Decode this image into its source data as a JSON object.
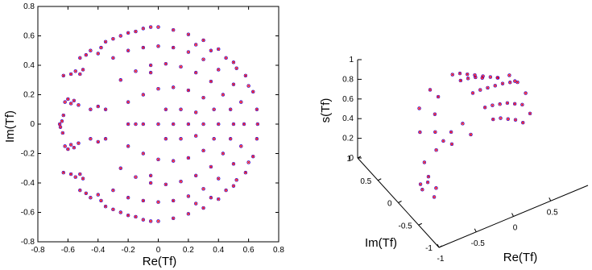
{
  "chart_data": [
    {
      "type": "scatter",
      "title": "",
      "xlabel": "Re(Tf)",
      "ylabel": "Im(Tf)",
      "xlim": [
        -0.8,
        0.8
      ],
      "ylim": [
        -0.8,
        0.8
      ],
      "xticks": [
        "-0.8",
        "-0.6",
        "-0.4",
        "-0.2",
        "0",
        "0.2",
        "0.4",
        "0.6",
        "0.8"
      ],
      "yticks": [
        "-0.8",
        "-0.6",
        "-0.4",
        "-0.2",
        "0",
        "0.2",
        "0.4",
        "0.6",
        "0.8"
      ],
      "grid": false,
      "marker_colors": [
        "#0000ff",
        "#ff0000"
      ],
      "series": [
        {
          "values": [
            [
              -0.655,
              0.0
            ],
            [
              -0.64,
              0.02
            ],
            [
              -0.63,
              0.06
            ],
            [
              -0.65,
              -0.02
            ],
            [
              -0.635,
              -0.06
            ],
            [
              -0.62,
              0.15
            ],
            [
              -0.6,
              0.17
            ],
            [
              -0.58,
              0.14
            ],
            [
              -0.56,
              0.16
            ],
            [
              -0.53,
              0.13
            ],
            [
              -0.62,
              -0.15
            ],
            [
              -0.6,
              -0.17
            ],
            [
              -0.58,
              -0.14
            ],
            [
              -0.56,
              -0.16
            ],
            [
              -0.53,
              -0.13
            ],
            [
              -0.63,
              0.33
            ],
            [
              -0.58,
              0.34
            ],
            [
              -0.55,
              0.36
            ],
            [
              -0.52,
              0.34
            ],
            [
              -0.5,
              0.37
            ],
            [
              -0.63,
              -0.33
            ],
            [
              -0.58,
              -0.34
            ],
            [
              -0.55,
              -0.36
            ],
            [
              -0.52,
              -0.34
            ],
            [
              -0.5,
              -0.37
            ],
            [
              -0.52,
              0.45
            ],
            [
              -0.48,
              0.47
            ],
            [
              -0.45,
              0.5
            ],
            [
              -0.4,
              0.48
            ],
            [
              -0.38,
              0.52
            ],
            [
              -0.52,
              -0.45
            ],
            [
              -0.48,
              -0.47
            ],
            [
              -0.45,
              -0.5
            ],
            [
              -0.4,
              -0.48
            ],
            [
              -0.38,
              -0.52
            ],
            [
              -0.35,
              0.56
            ],
            [
              -0.3,
              0.58
            ],
            [
              -0.25,
              0.6
            ],
            [
              -0.2,
              0.62
            ],
            [
              -0.15,
              0.63
            ],
            [
              -0.1,
              0.65
            ],
            [
              -0.05,
              0.66
            ],
            [
              0.0,
              0.66
            ],
            [
              -0.35,
              -0.56
            ],
            [
              -0.3,
              -0.58
            ],
            [
              -0.25,
              -0.6
            ],
            [
              -0.2,
              -0.62
            ],
            [
              -0.15,
              -0.63
            ],
            [
              -0.1,
              -0.65
            ],
            [
              -0.05,
              -0.66
            ],
            [
              0.0,
              -0.66
            ],
            [
              0.1,
              0.64
            ],
            [
              0.2,
              0.61
            ],
            [
              0.3,
              0.57
            ],
            [
              0.4,
              0.51
            ],
            [
              0.5,
              0.42
            ],
            [
              0.58,
              0.33
            ],
            [
              0.63,
              0.22
            ],
            [
              0.655,
              0.1
            ],
            [
              0.66,
              0.0
            ],
            [
              0.1,
              -0.64
            ],
            [
              0.2,
              -0.61
            ],
            [
              0.3,
              -0.57
            ],
            [
              0.4,
              -0.51
            ],
            [
              0.5,
              -0.42
            ],
            [
              0.58,
              -0.33
            ],
            [
              0.63,
              -0.22
            ],
            [
              0.655,
              -0.1
            ],
            [
              -0.3,
              0.45
            ],
            [
              -0.2,
              0.5
            ],
            [
              -0.1,
              0.52
            ],
            [
              0.0,
              0.53
            ],
            [
              0.1,
              0.52
            ],
            [
              0.2,
              0.49
            ],
            [
              0.3,
              0.44
            ],
            [
              0.4,
              0.37
            ],
            [
              0.5,
              0.27
            ],
            [
              0.55,
              0.15
            ],
            [
              0.57,
              0.0
            ],
            [
              -0.3,
              -0.45
            ],
            [
              -0.2,
              -0.5
            ],
            [
              -0.1,
              -0.52
            ],
            [
              0.0,
              -0.53
            ],
            [
              0.1,
              -0.52
            ],
            [
              0.2,
              -0.49
            ],
            [
              0.3,
              -0.44
            ],
            [
              0.4,
              -0.37
            ],
            [
              0.5,
              -0.27
            ],
            [
              0.55,
              -0.15
            ],
            [
              -0.25,
              0.3
            ],
            [
              -0.15,
              0.36
            ],
            [
              -0.05,
              0.4
            ],
            [
              0.05,
              0.41
            ],
            [
              0.15,
              0.39
            ],
            [
              0.25,
              0.35
            ],
            [
              0.35,
              0.29
            ],
            [
              0.43,
              0.2
            ],
            [
              0.48,
              0.1
            ],
            [
              0.5,
              0.0
            ],
            [
              -0.25,
              -0.3
            ],
            [
              -0.15,
              -0.36
            ],
            [
              -0.05,
              -0.4
            ],
            [
              0.05,
              -0.41
            ],
            [
              0.15,
              -0.39
            ],
            [
              0.25,
              -0.35
            ],
            [
              0.35,
              -0.29
            ],
            [
              0.43,
              -0.2
            ],
            [
              0.48,
              -0.1
            ],
            [
              -0.45,
              0.1
            ],
            [
              -0.4,
              0.12
            ],
            [
              -0.35,
              0.1
            ],
            [
              -0.45,
              -0.1
            ],
            [
              -0.4,
              -0.12
            ],
            [
              -0.35,
              -0.1
            ],
            [
              -0.2,
              0.15
            ],
            [
              -0.1,
              0.2
            ],
            [
              0.0,
              0.24
            ],
            [
              0.1,
              0.25
            ],
            [
              0.2,
              0.23
            ],
            [
              0.3,
              0.18
            ],
            [
              0.37,
              0.1
            ],
            [
              0.4,
              0.0
            ],
            [
              -0.2,
              -0.15
            ],
            [
              -0.1,
              -0.2
            ],
            [
              0.0,
              -0.24
            ],
            [
              0.1,
              -0.25
            ],
            [
              0.2,
              -0.23
            ],
            [
              0.3,
              -0.18
            ],
            [
              0.37,
              -0.1
            ],
            [
              -0.2,
              0.0
            ],
            [
              -0.15,
              0.0
            ],
            [
              -0.1,
              0.0
            ],
            [
              0.0,
              0.0
            ],
            [
              0.1,
              0.0
            ],
            [
              0.2,
              0.0
            ],
            [
              0.3,
              0.0
            ],
            [
              0.05,
              0.1
            ],
            [
              0.15,
              0.1
            ],
            [
              0.25,
              0.08
            ],
            [
              0.05,
              -0.1
            ],
            [
              0.15,
              -0.1
            ],
            [
              0.25,
              -0.08
            ],
            [
              -0.05,
              0.35
            ],
            [
              0.25,
              0.54
            ],
            [
              0.35,
              0.5
            ],
            [
              0.45,
              0.45
            ],
            [
              0.52,
              0.38
            ],
            [
              0.6,
              0.26
            ],
            [
              -0.05,
              -0.35
            ],
            [
              0.25,
              -0.54
            ],
            [
              0.35,
              -0.5
            ],
            [
              0.45,
              -0.45
            ],
            [
              0.52,
              -0.38
            ],
            [
              0.6,
              -0.26
            ]
          ]
        }
      ]
    },
    {
      "type": "scatter",
      "title": "",
      "xlabel": "Re(Tf)",
      "ylabel": "Im(Tf)",
      "zlabel": "s(Tf)",
      "xticks": [
        "-1",
        "-0.5",
        "0",
        "0.5"
      ],
      "yticks": [
        "-1",
        "-0.5",
        "0",
        "0.5",
        "1"
      ],
      "zticks": [
        "0",
        "0.2",
        "0.4",
        "0.6",
        "0.8",
        "1"
      ],
      "grid": false,
      "marker_colors": [
        "#0000ff",
        "#ff0000"
      ],
      "series": [
        {
          "values": [
            [
              0.0,
              0.0,
              0.8
            ],
            [
              0.1,
              0.0,
              0.8
            ],
            [
              0.2,
              0.0,
              0.79
            ],
            [
              0.3,
              0.0,
              0.78
            ],
            [
              0.4,
              0.0,
              0.77
            ],
            [
              0.5,
              0.0,
              0.75
            ],
            [
              0.6,
              0.0,
              0.72
            ],
            [
              0.0,
              0.3,
              0.79
            ],
            [
              0.1,
              0.3,
              0.78
            ],
            [
              0.2,
              0.3,
              0.76
            ],
            [
              0.3,
              0.3,
              0.74
            ],
            [
              0.4,
              0.3,
              0.7
            ],
            [
              0.5,
              0.3,
              0.66
            ],
            [
              0.0,
              0.5,
              0.76
            ],
            [
              0.1,
              0.5,
              0.74
            ],
            [
              0.2,
              0.5,
              0.7
            ],
            [
              0.3,
              0.5,
              0.66
            ],
            [
              0.4,
              0.5,
              0.6
            ],
            [
              0.0,
              -0.3,
              0.79
            ],
            [
              0.1,
              -0.3,
              0.78
            ],
            [
              0.2,
              -0.3,
              0.76
            ],
            [
              0.3,
              -0.3,
              0.74
            ],
            [
              0.4,
              -0.3,
              0.7
            ],
            [
              0.5,
              -0.3,
              0.66
            ],
            [
              0.0,
              -0.5,
              0.76
            ],
            [
              0.1,
              -0.5,
              0.74
            ],
            [
              0.2,
              -0.5,
              0.7
            ],
            [
              0.3,
              -0.5,
              0.66
            ],
            [
              0.4,
              -0.5,
              0.6
            ],
            [
              -0.3,
              0.5,
              0.7
            ],
            [
              -0.5,
              0.4,
              0.62
            ],
            [
              -0.6,
              0.2,
              0.5
            ],
            [
              -0.65,
              0.0,
              0.3
            ],
            [
              -0.3,
              -0.5,
              0.7
            ],
            [
              -0.5,
              -0.4,
              0.62
            ],
            [
              -0.6,
              -0.2,
              0.5
            ],
            [
              -0.65,
              -0.1,
              0.2
            ],
            [
              -0.3,
              0.3,
              0.72
            ],
            [
              -0.4,
              0.2,
              0.62
            ],
            [
              -0.45,
              0.1,
              0.5
            ],
            [
              -0.3,
              -0.3,
              0.72
            ],
            [
              -0.4,
              -0.2,
              0.62
            ],
            [
              -0.45,
              -0.1,
              0.5
            ],
            [
              -0.65,
              0.05,
              0.0
            ],
            [
              -0.62,
              0.15,
              0.0
            ],
            [
              -0.6,
              -0.15,
              0.0
            ],
            [
              -0.55,
              0.1,
              0.02
            ],
            [
              -0.52,
              -0.05,
              0.02
            ],
            [
              0.6,
              0.2,
              0.7
            ],
            [
              0.62,
              0.1,
              0.68
            ],
            [
              0.6,
              -0.2,
              0.7
            ],
            [
              0.55,
              0.4,
              0.6
            ],
            [
              0.55,
              -0.4,
              0.6
            ]
          ]
        }
      ]
    }
  ]
}
